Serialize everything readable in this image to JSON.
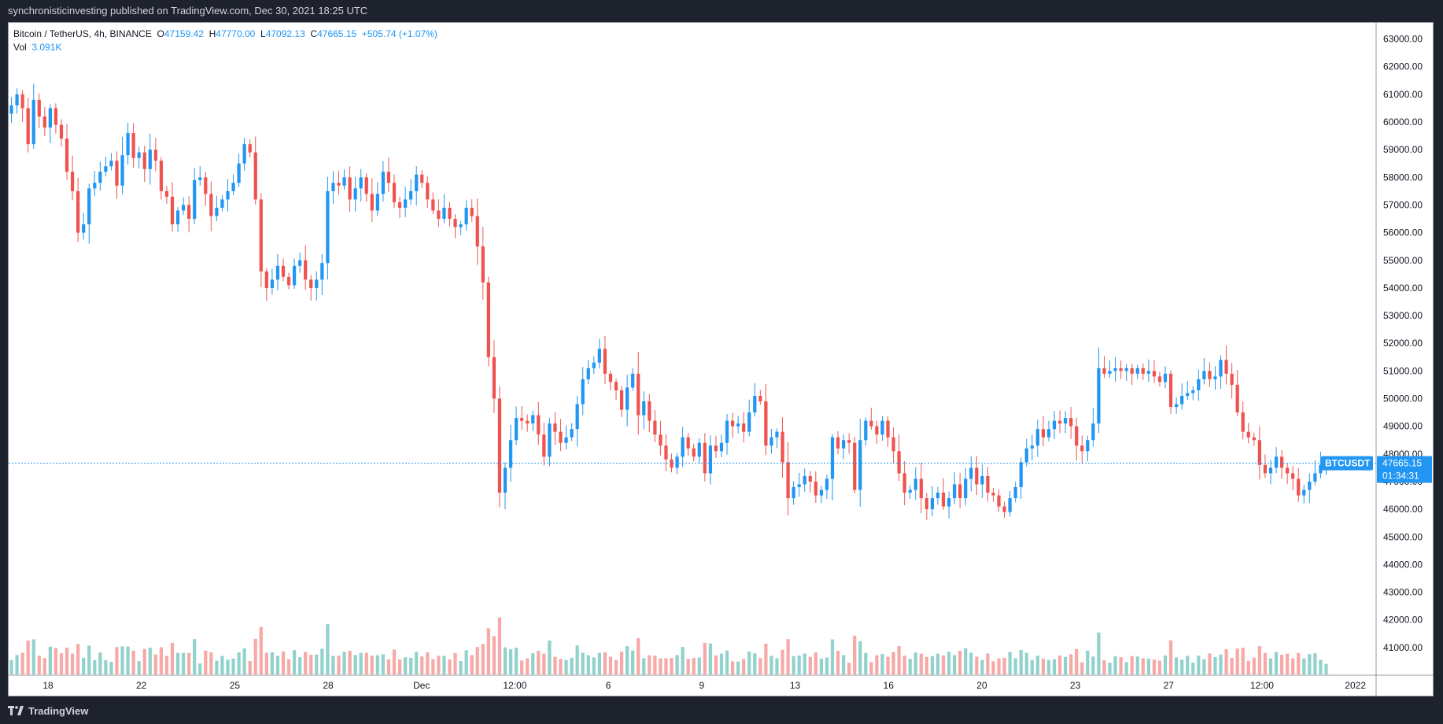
{
  "header": {
    "published": "synchronisticinvesting published on TradingView.com, Dec 30, 2021 18:25 UTC"
  },
  "legend": {
    "symbol": "Bitcoin / TetherUS, 4h, BINANCE",
    "o_label": "O",
    "o": "47159.42",
    "h_label": "H",
    "h": "47770.00",
    "l_label": "L",
    "l": "47092.13",
    "c_label": "C",
    "c": "47665.15",
    "change": "+505.74 (+1.07%)",
    "vol_label": "Vol",
    "vol": "3.091K"
  },
  "price_tag": {
    "symbol": "BTCUSDT",
    "price": "47665.15",
    "countdown": "01:34:31"
  },
  "footer": {
    "brand": "TradingView"
  },
  "colors": {
    "up": "#2196f3",
    "down": "#ef5350",
    "vol_up": "#26a69a",
    "vol_down": "#ef5350",
    "tag": "#2196f3"
  },
  "chart_data": {
    "type": "candlestick",
    "ylim": [
      40000,
      63500
    ],
    "y_ticks": [
      41000,
      42000,
      43000,
      44000,
      45000,
      46000,
      47000,
      48000,
      49000,
      50000,
      51000,
      52000,
      53000,
      54000,
      55000,
      56000,
      57000,
      58000,
      59000,
      60000,
      61000,
      62000,
      63000
    ],
    "x_ticks": [
      "18",
      "22",
      "25",
      "28",
      "Dec",
      "12:00",
      "6",
      "9",
      "13",
      "16",
      "20",
      "23",
      "27",
      "12:00",
      "2022"
    ],
    "last_price": 47665.15,
    "closes": [
      60600,
      61000,
      60500,
      59200,
      60800,
      60200,
      59800,
      60500,
      59900,
      59400,
      58200,
      57500,
      56000,
      56300,
      57600,
      57800,
      58200,
      58400,
      58600,
      57700,
      58800,
      59600,
      58700,
      58900,
      58300,
      59000,
      58600,
      57500,
      57300,
      56300,
      56800,
      57000,
      56500,
      57900,
      58000,
      57400,
      56600,
      56900,
      57200,
      57500,
      57800,
      58500,
      59200,
      58900,
      57200,
      54600,
      54000,
      54300,
      54800,
      54400,
      54100,
      54800,
      55000,
      54300,
      54000,
      54300,
      54900,
      57500,
      57800,
      57700,
      58000,
      57200,
      57600,
      58000,
      57400,
      56800,
      57400,
      58200,
      57800,
      57100,
      56900,
      57200,
      57500,
      58100,
      57800,
      57200,
      56800,
      56500,
      56900,
      56500,
      56200,
      56300,
      56900,
      56600,
      55500,
      54200,
      51500,
      50000,
      46600,
      47500,
      48500,
      49300,
      49200,
      49100,
      49400,
      48700,
      47900,
      49100,
      48800,
      48400,
      48600,
      48900,
      49800,
      50700,
      51100,
      51300,
      51800,
      50900,
      50600,
      50300,
      49600,
      50400,
      50900,
      49400,
      49900,
      49200,
      48700,
      48300,
      47800,
      47500,
      47900,
      48600,
      48200,
      47900,
      48400,
      47300,
      48300,
      48100,
      48400,
      49200,
      49000,
      49100,
      48800,
      49500,
      50100,
      49900,
      48300,
      48600,
      48800,
      47700,
      46400,
      46800,
      46900,
      47200,
      47000,
      46500,
      46700,
      47100,
      48600,
      48200,
      48500,
      48400,
      46700,
      48500,
      49200,
      49000,
      48700,
      49200,
      48600,
      48100,
      47300,
      46600,
      46700,
      47100,
      46400,
      46000,
      46400,
      46600,
      46100,
      46400,
      46900,
      46400,
      47100,
      47500,
      46900,
      47200,
      46600,
      46500,
      46100,
      45900,
      46400,
      46800,
      47700,
      48200,
      48300,
      48900,
      48600,
      48900,
      49200,
      49100,
      49300,
      49000,
      48300,
      48100,
      48500,
      49100,
      51100,
      50900,
      51000,
      51100,
      51000,
      51100,
      50900,
      51100,
      50900,
      51000,
      50800,
      50600,
      50900,
      49700,
      49800,
      50100,
      50200,
      50300,
      50700,
      51000,
      50700,
      50800,
      51400,
      50900,
      50500,
      49500,
      48800,
      48600,
      48500,
      47600,
      47300,
      47500,
      47900,
      47500,
      47300,
      47100,
      46500,
      46700,
      47000,
      47300,
      47600,
      47665
    ]
  }
}
